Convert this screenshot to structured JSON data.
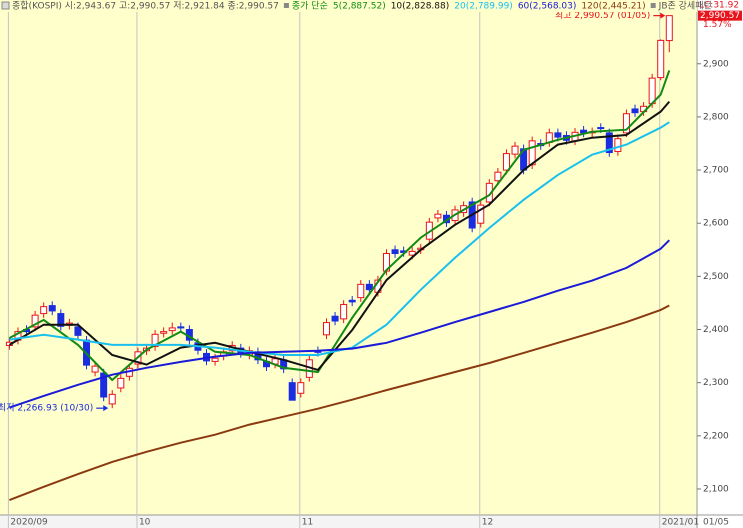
{
  "chart_data": {
    "type": "candlestick",
    "header": "종합(KOSPI) 시:2,943.67 고:2,990.57 저:2,921.84 종:2,990.57",
    "legend_prefix": "종가 단순",
    "extra_legend": "JB존 강세패턴",
    "categories": [
      "2020/09",
      null,
      null,
      null,
      null,
      null,
      null,
      null,
      null,
      null,
      null,
      null,
      null,
      null,
      null,
      "10",
      null,
      null,
      null,
      null,
      null,
      null,
      null,
      null,
      null,
      null,
      null,
      null,
      null,
      null,
      null,
      null,
      null,
      null,
      "11",
      null,
      null,
      null,
      null,
      null,
      null,
      null,
      null,
      null,
      null,
      null,
      null,
      null,
      null,
      null,
      null,
      null,
      null,
      null,
      null,
      "12",
      null,
      null,
      null,
      null,
      null,
      null,
      null,
      null,
      null,
      null,
      null,
      null,
      null,
      null,
      null,
      null,
      null,
      null,
      null,
      null,
      "2021/01",
      null
    ],
    "open": [
      2370,
      2380,
      2400,
      2405,
      2430,
      2445,
      2430,
      2408,
      2405,
      2380,
      2320,
      2318,
      2260,
      2290,
      2312,
      2335,
      2360,
      2368,
      2393,
      2398,
      2405,
      2400,
      2375,
      2355,
      2340,
      2350,
      2360,
      2365,
      2352,
      2358,
      2340,
      2335,
      2343,
      2300,
      2280,
      2310,
      2360,
      2390,
      2425,
      2420,
      2455,
      2460,
      2485,
      2470,
      2510,
      2550,
      2548,
      2540,
      2550,
      2570,
      2610,
      2615,
      2605,
      2620,
      2640,
      2600,
      2640,
      2680,
      2700,
      2730,
      2740,
      2710,
      2750,
      2752,
      2770,
      2765,
      2755,
      2775,
      2770,
      2780,
      2770,
      2735,
      2770,
      2815,
      2810,
      2825,
      2874,
      2943.67
    ],
    "high": [
      2384,
      2404,
      2408,
      2435,
      2451,
      2453,
      2438,
      2420,
      2413,
      2388,
      2339,
      2326,
      2286,
      2316,
      2335,
      2366,
      2373,
      2399,
      2404,
      2413,
      2413,
      2408,
      2383,
      2363,
      2354,
      2366,
      2378,
      2373,
      2368,
      2366,
      2348,
      2353,
      2351,
      2308,
      2308,
      2351,
      2368,
      2421,
      2433,
      2455,
      2463,
      2493,
      2493,
      2501,
      2551,
      2558,
      2556,
      2555,
      2561,
      2610,
      2625,
      2623,
      2633,
      2641,
      2648,
      2642,
      2683,
      2704,
      2739,
      2753,
      2748,
      2763,
      2758,
      2778,
      2778,
      2773,
      2779,
      2783,
      2780,
      2788,
      2778,
      2767,
      2814,
      2823,
      2828,
      2881,
      2946,
      2990.57
    ],
    "low": [
      2362,
      2372,
      2388,
      2397,
      2422,
      2427,
      2398,
      2400,
      2381,
      2325,
      2312,
      2265,
      2252,
      2282,
      2304,
      2327,
      2352,
      2360,
      2385,
      2390,
      2395,
      2372,
      2353,
      2333,
      2332,
      2342,
      2352,
      2347,
      2344,
      2335,
      2322,
      2327,
      2318,
      2266.93,
      2272,
      2302,
      2349,
      2382,
      2408,
      2412,
      2444,
      2452,
      2467,
      2462,
      2502,
      2535,
      2537,
      2532,
      2542,
      2562,
      2602,
      2593,
      2597,
      2612,
      2583,
      2592,
      2632,
      2672,
      2692,
      2722,
      2692,
      2702,
      2738,
      2744,
      2754,
      2748,
      2747,
      2762,
      2762,
      2770,
      2725,
      2727,
      2762,
      2800,
      2802,
      2817,
      2869,
      2921.84
    ],
    "close": [
      2376,
      2396,
      2396,
      2427,
      2443,
      2435,
      2406,
      2412,
      2389,
      2333,
      2331,
      2273,
      2278,
      2308,
      2327,
      2358,
      2365,
      2391,
      2396,
      2403,
      2403,
      2380,
      2361,
      2341,
      2346,
      2358,
      2370,
      2355,
      2360,
      2343,
      2330,
      2345,
      2326,
      2267,
      2300,
      2343,
      2357,
      2413,
      2416,
      2447,
      2452,
      2485,
      2475,
      2493,
      2543,
      2543,
      2545,
      2547,
      2553,
      2602,
      2617,
      2601,
      2625,
      2633,
      2591,
      2634,
      2675,
      2696,
      2731,
      2745,
      2700,
      2755,
      2746,
      2770,
      2762,
      2756,
      2771,
      2770,
      2772,
      2778,
      2733,
      2759,
      2806,
      2808,
      2820,
      2873,
      2944,
      2990.57
    ],
    "up_color": "#e8141c",
    "down_color": "#1a2de0",
    "lines": [
      {
        "name": "5(2,887.52)",
        "color": "#138a13",
        "x": [
          0,
          4,
          8,
          12,
          16,
          20,
          24,
          28,
          32,
          36,
          40,
          44,
          48,
          52,
          56,
          60,
          64,
          68,
          72,
          76,
          77
        ],
        "values": [
          2384,
          2418,
          2371,
          2305,
          2362,
          2396,
          2358,
          2352,
          2328,
          2320,
          2422,
          2512,
          2573,
          2616,
          2653,
          2738,
          2757,
          2772,
          2776,
          2842,
          2887.52
        ]
      },
      {
        "name": "10(2,828.88)",
        "color": "#111111",
        "x": [
          0,
          4,
          8,
          12,
          16,
          20,
          24,
          28,
          32,
          36,
          40,
          44,
          48,
          52,
          56,
          60,
          64,
          68,
          72,
          76,
          77
        ],
        "values": [
          2371,
          2409,
          2409,
          2352,
          2334,
          2366,
          2375,
          2358,
          2343,
          2324,
          2399,
          2493,
          2550,
          2597,
          2635,
          2700,
          2748,
          2761,
          2766,
          2810,
          2828.88
        ]
      },
      {
        "name": "20(2,789.99)",
        "color": "#19c0ee",
        "x": [
          0,
          4,
          8,
          12,
          16,
          20,
          24,
          28,
          32,
          36,
          40,
          44,
          48,
          52,
          56,
          60,
          64,
          68,
          72,
          76,
          77
        ],
        "values": [
          2381,
          2390,
          2381,
          2371,
          2371,
          2371,
          2366,
          2358,
          2352,
          2352,
          2366,
          2409,
          2475,
          2535,
          2591,
          2644,
          2691,
          2729,
          2748,
          2780,
          2789.99
        ]
      },
      {
        "name": "60(2,568.03)",
        "color": "#1a1ad8",
        "x": [
          0,
          4,
          8,
          12,
          16,
          20,
          24,
          28,
          32,
          36,
          40,
          44,
          48,
          52,
          56,
          60,
          64,
          68,
          72,
          76,
          77
        ],
        "values": [
          2253,
          2275,
          2296,
          2315,
          2328,
          2339,
          2349,
          2356,
          2358,
          2360,
          2364,
          2375,
          2394,
          2414,
          2433,
          2452,
          2473,
          2492,
          2516,
          2552,
          2568.03
        ]
      },
      {
        "name": "120(2,445.21)",
        "color": "#8b3a10",
        "x": [
          0,
          4,
          8,
          12,
          16,
          20,
          24,
          28,
          32,
          36,
          40,
          44,
          48,
          52,
          56,
          60,
          64,
          68,
          72,
          76,
          77
        ],
        "values": [
          2079,
          2104,
          2128,
          2151,
          2170,
          2187,
          2202,
          2221,
          2236,
          2251,
          2268,
          2286,
          2303,
          2320,
          2337,
          2356,
          2375,
          2394,
          2414,
          2437,
          2445.21
        ]
      }
    ],
    "ylim": [
      2051,
      3020
    ],
    "yticks": [
      {
        "value": 2100,
        "label": "2,100"
      },
      {
        "value": 2200,
        "label": "2,200"
      },
      {
        "value": 2300,
        "label": "2,300"
      },
      {
        "value": 2400,
        "label": "2,400"
      },
      {
        "value": 2500,
        "label": "2,500"
      },
      {
        "value": 2600,
        "label": "2,600"
      },
      {
        "value": 2700,
        "label": "2,700"
      },
      {
        "value": 2800,
        "label": "2,800"
      },
      {
        "value": 2900,
        "label": "2,900"
      }
    ],
    "lc_label": "LC:31.92",
    "last_label": "2,990.57",
    "change_label": "1.57%",
    "last_date_label": "01/05",
    "annotations": [
      {
        "text": "최고 2,990.57 (01/05)",
        "color": "#e8141c"
      },
      {
        "text": "최저 2,266.93 (10/30)",
        "color": "#1a2de0"
      }
    ]
  }
}
